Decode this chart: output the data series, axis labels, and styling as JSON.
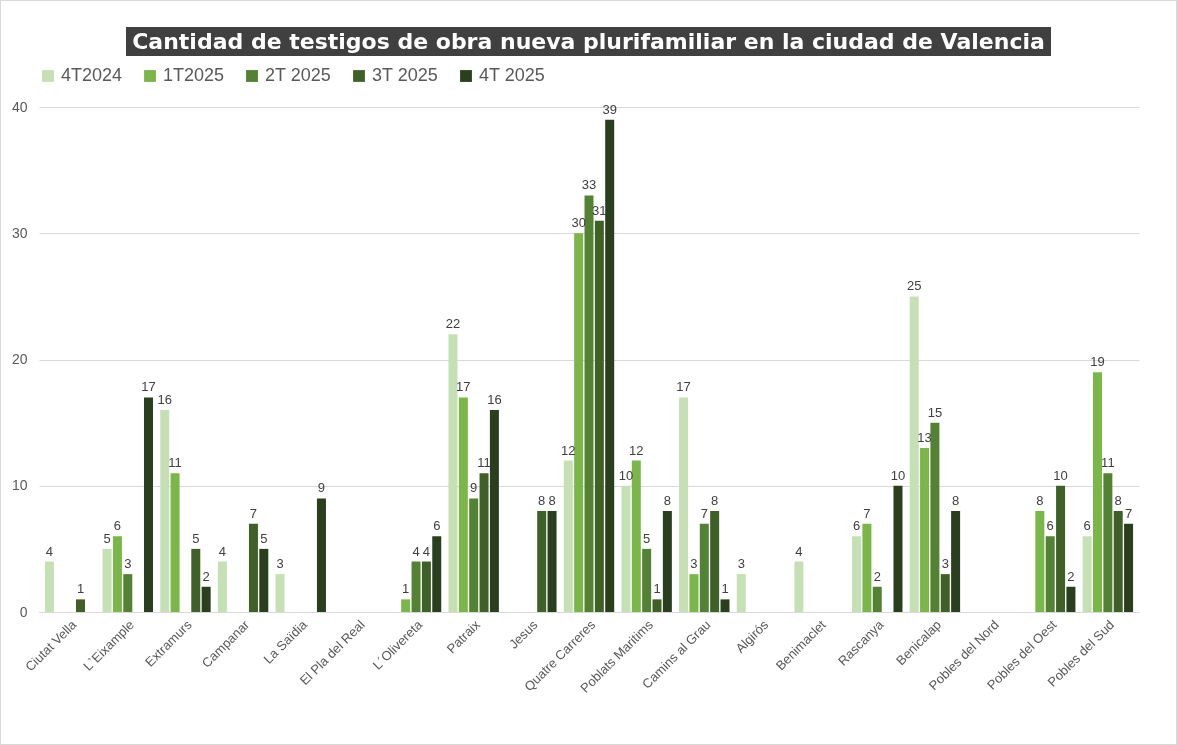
{
  "chart_data": {
    "type": "bar",
    "title": "Cantidad de testigos de obra nueva plurifamiliar en la ciudad de Valencia",
    "categories": [
      "Ciutat Vella",
      "L`Eixample",
      "Extramurs",
      "Campanar",
      "La Saïdia",
      "El Pla del Real",
      "L´Olivereta",
      "Patraix",
      "Jesus",
      "Quatre Carreres",
      "Poblats Maritims",
      "Camins al Grau",
      "Algirós",
      "Benimaclet",
      "Rascanya",
      "Benicalap",
      "Pobles del Nord",
      "Pobles del Oest",
      "Pobles del Sud"
    ],
    "series": [
      {
        "name": "4T2024",
        "color": "#c5e0b4",
        "values": [
          4,
          5,
          16,
          4,
          3,
          null,
          null,
          22,
          null,
          12,
          10,
          17,
          3,
          4,
          6,
          25,
          null,
          null,
          6
        ]
      },
      {
        "name": "1T2025",
        "color": "#7ab648",
        "values": [
          null,
          6,
          11,
          null,
          null,
          null,
          1,
          17,
          null,
          30,
          12,
          3,
          null,
          null,
          7,
          13,
          null,
          8,
          19
        ]
      },
      {
        "name": "2T 2025",
        "color": "#548235",
        "values": [
          null,
          3,
          null,
          null,
          null,
          null,
          4,
          9,
          null,
          33,
          5,
          7,
          null,
          null,
          2,
          15,
          null,
          6,
          11
        ]
      },
      {
        "name": "3T 2025",
        "color": "#3f6128",
        "values": [
          1,
          null,
          5,
          7,
          null,
          null,
          4,
          11,
          8,
          31,
          1,
          8,
          null,
          null,
          null,
          3,
          null,
          10,
          8
        ]
      },
      {
        "name": "4T 2025",
        "color": "#2a3f1e",
        "values": [
          null,
          17,
          2,
          5,
          9,
          null,
          6,
          16,
          8,
          39,
          8,
          1,
          null,
          null,
          10,
          8,
          null,
          2,
          7
        ]
      }
    ],
    "ylim": [
      0,
      40
    ],
    "yticks": [
      0,
      10,
      20,
      30,
      40
    ],
    "grid": "y",
    "legend": "top",
    "data_labels": true
  }
}
